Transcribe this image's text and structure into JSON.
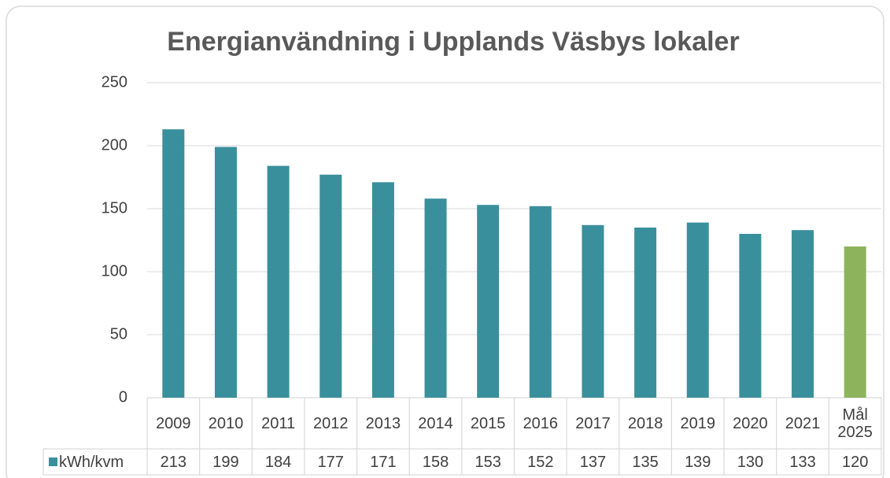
{
  "chart_data": {
    "type": "bar",
    "title": "Energianvändning i Upplands Väsbys lokaler",
    "categories": [
      "2009",
      "2010",
      "2011",
      "2012",
      "2013",
      "2014",
      "2015",
      "2016",
      "2017",
      "2018",
      "2019",
      "2020",
      "2021",
      "Mål 2025"
    ],
    "series": [
      {
        "name": "kWh/kvm",
        "color": "#3a8f9c",
        "colors": [
          "#3a8f9c",
          "#3a8f9c",
          "#3a8f9c",
          "#3a8f9c",
          "#3a8f9c",
          "#3a8f9c",
          "#3a8f9c",
          "#3a8f9c",
          "#3a8f9c",
          "#3a8f9c",
          "#3a8f9c",
          "#3a8f9c",
          "#3a8f9c",
          "#8db35d"
        ],
        "values": [
          213,
          199,
          184,
          177,
          171,
          158,
          153,
          152,
          137,
          135,
          139,
          130,
          133,
          120
        ]
      }
    ],
    "ylim": [
      0,
      250
    ],
    "yticks": [
      0,
      50,
      100,
      150,
      200,
      250
    ],
    "grid": true
  }
}
